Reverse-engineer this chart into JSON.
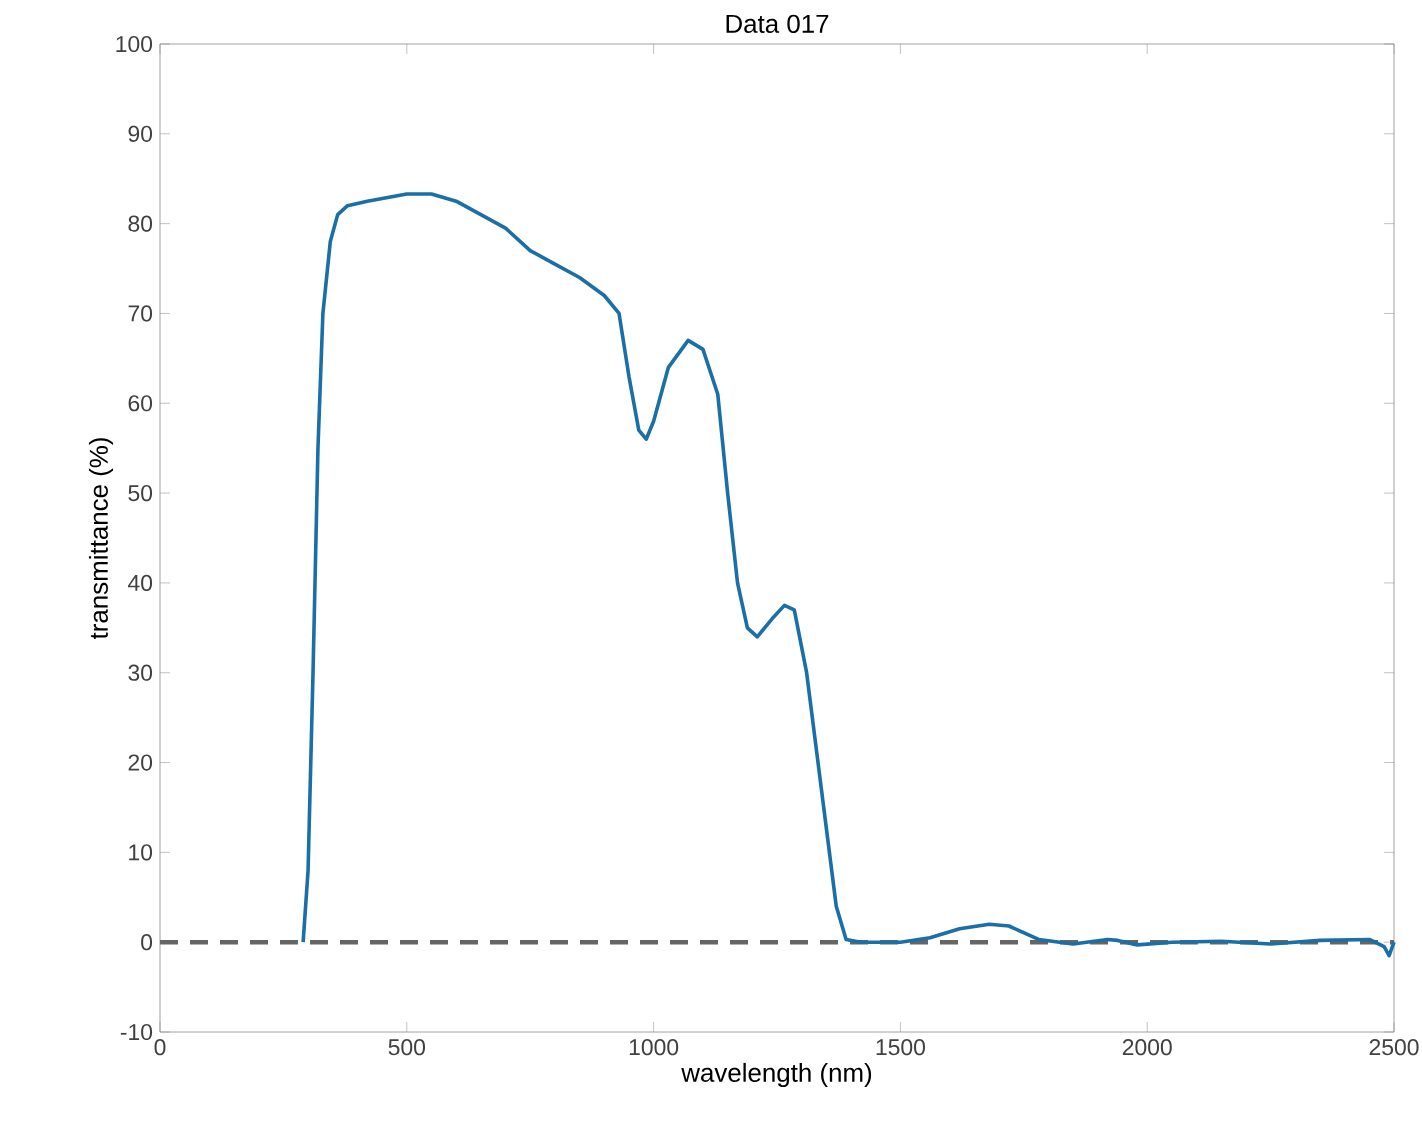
{
  "chart_data": {
    "type": "line",
    "title": "Data 017",
    "xlabel": "wavelength (nm)",
    "ylabel": "transmittance (%)",
    "x": [
      290,
      300,
      310,
      320,
      330,
      345,
      360,
      380,
      420,
      500,
      550,
      600,
      650,
      700,
      750,
      800,
      850,
      900,
      930,
      950,
      970,
      985,
      1000,
      1030,
      1070,
      1100,
      1130,
      1150,
      1170,
      1190,
      1210,
      1240,
      1265,
      1285,
      1310,
      1340,
      1370,
      1390,
      1420,
      1500,
      1560,
      1620,
      1680,
      1720,
      1780,
      1850,
      1920,
      1940,
      1980,
      2050,
      2150,
      2250,
      2350,
      2450,
      2480,
      2490,
      2500
    ],
    "values": [
      0,
      8,
      30,
      55,
      70,
      78,
      81,
      82,
      82.5,
      83.3,
      83.3,
      82.5,
      81,
      79.5,
      77,
      75.5,
      74,
      72,
      70,
      63,
      57,
      56,
      58,
      64,
      67,
      66,
      61,
      50,
      40,
      35,
      34,
      36,
      37.5,
      37,
      30,
      17,
      4,
      0.3,
      0,
      0,
      0.5,
      1.5,
      2,
      1.8,
      0.3,
      -0.2,
      0.3,
      0.2,
      -0.3,
      0,
      0.1,
      -0.2,
      0.2,
      0.3,
      -0.5,
      -1.5,
      0
    ],
    "color": "#1a6fa6",
    "xlim": [
      0,
      2500
    ],
    "ylim": [
      -10,
      100
    ],
    "xticks": [
      0,
      500,
      1000,
      1500,
      2000,
      2500
    ],
    "yticks": [
      -10,
      0,
      10,
      20,
      30,
      40,
      50,
      60,
      70,
      80,
      90,
      100
    ],
    "ref_lines": [
      {
        "axis": "y",
        "value": 0,
        "color": "#666666",
        "line_style": "dashed"
      }
    ]
  }
}
